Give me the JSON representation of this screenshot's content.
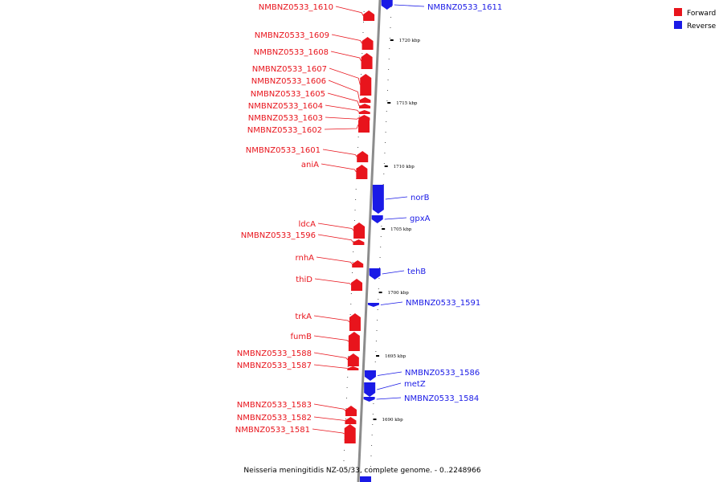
{
  "caption": "Neisseria meningitidis NZ-05/33, complete genome. - 0..2248966",
  "colors": {
    "forward": "#e8141c",
    "reverse": "#1a1ae6",
    "backbone": "#8c8c8c"
  },
  "legend": [
    {
      "label": "Forward",
      "strand": "forward"
    },
    {
      "label": "Reverse",
      "strand": "reverse"
    }
  ],
  "ticks": [
    {
      "label": "1720 kbp",
      "kbp": 1720
    },
    {
      "label": "1715 kbp",
      "kbp": 1715
    },
    {
      "label": "1710 kbp",
      "kbp": 1710
    },
    {
      "label": "1705 kbp",
      "kbp": 1705
    },
    {
      "label": "1700 kbp",
      "kbp": 1700
    },
    {
      "label": "1695 kbp",
      "kbp": 1695
    },
    {
      "label": "1690 kbp",
      "kbp": 1690
    }
  ],
  "forward_genes": [
    {
      "label": "NMBNZ0533_1610"
    },
    {
      "label": "NMBNZ0533_1609"
    },
    {
      "label": "NMBNZ0533_1608"
    },
    {
      "label": "NMBNZ0533_1607"
    },
    {
      "label": "NMBNZ0533_1606"
    },
    {
      "label": "NMBNZ0533_1605"
    },
    {
      "label": "NMBNZ0533_1604"
    },
    {
      "label": "NMBNZ0533_1603"
    },
    {
      "label": "NMBNZ0533_1602"
    },
    {
      "label": "NMBNZ0533_1601"
    },
    {
      "label": "aniA"
    },
    {
      "label": "ldcA"
    },
    {
      "label": "NMBNZ0533_1596"
    },
    {
      "label": "rnhA"
    },
    {
      "label": "thiD"
    },
    {
      "label": "trkA"
    },
    {
      "label": "fumB"
    },
    {
      "label": "NMBNZ0533_1588"
    },
    {
      "label": "NMBNZ0533_1587"
    },
    {
      "label": "NMBNZ0533_1583"
    },
    {
      "label": "NMBNZ0533_1582"
    },
    {
      "label": "NMBNZ0533_1581"
    }
  ],
  "reverse_genes": [
    {
      "label": "NMBNZ0533_1611"
    },
    {
      "label": "norB"
    },
    {
      "label": "gpxA"
    },
    {
      "label": "tehB"
    },
    {
      "label": "NMBNZ0533_1591"
    },
    {
      "label": "NMBNZ0533_1586"
    },
    {
      "label": "metZ"
    },
    {
      "label": "NMBNZ0533_1584"
    }
  ]
}
